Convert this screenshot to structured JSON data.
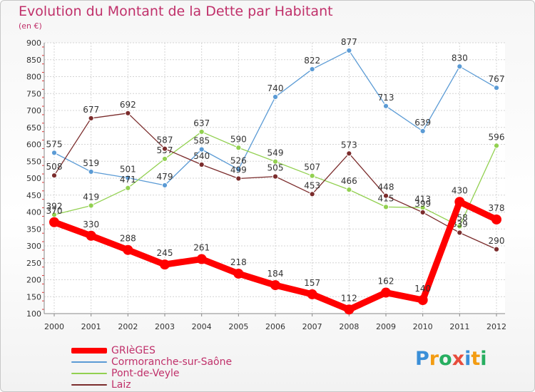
{
  "title": "Evolution du Montant de la Dette par Habitant",
  "subtitle": "(en €)",
  "logo": {
    "text": "Proxiti",
    "letters": [
      {
        "ch": "P",
        "color": "#3a8fd8"
      },
      {
        "ch": "r",
        "color": "#f39c12"
      },
      {
        "ch": "o",
        "color": "#27ae60"
      },
      {
        "ch": "x",
        "color": "#e74c3c"
      },
      {
        "ch": "i",
        "color": "#3a8fd8"
      },
      {
        "ch": "t",
        "color": "#f39c12"
      },
      {
        "ch": "i",
        "color": "#27ae60"
      }
    ]
  },
  "chart_data": {
    "type": "line",
    "x": [
      "2000",
      "2001",
      "2002",
      "2003",
      "2004",
      "2005",
      "2006",
      "2007",
      "2008",
      "2009",
      "2010",
      "2011",
      "2012"
    ],
    "ylim": [
      100,
      900
    ],
    "yticks": [
      "100",
      "150",
      "200",
      "250",
      "300",
      "350",
      "400",
      "450",
      "500",
      "550",
      "600",
      "650",
      "700",
      "750",
      "800",
      "850",
      "900"
    ],
    "grid": true,
    "legend_position": "bottom-left",
    "series": [
      {
        "name": "Cormoranche-sur-Saône",
        "color": "#5b9bd5",
        "values": [
          575,
          519,
          501,
          479,
          585,
          526,
          740,
          822,
          877,
          713,
          639,
          830,
          767
        ],
        "labels": [
          "575",
          "519",
          "501",
          "479",
          "585",
          "526",
          "740",
          "822",
          "877",
          "713",
          "639",
          "830",
          "767"
        ]
      },
      {
        "name": "Pont-de-Veyle",
        "color": "#92d050",
        "values": [
          392,
          419,
          471,
          557,
          637,
          590,
          549,
          507,
          466,
          415,
          413,
          358,
          596
        ],
        "labels": [
          "392",
          "419",
          "471",
          "557",
          "637",
          "590",
          "549",
          "507",
          "466",
          "415",
          "413",
          "358",
          "596"
        ]
      },
      {
        "name": "Laiz",
        "color": "#7b2c2c",
        "values": [
          508,
          677,
          692,
          587,
          540,
          499,
          505,
          453,
          573,
          448,
          399,
          339,
          290
        ],
        "labels": [
          "508",
          "677",
          "692",
          "587",
          "540",
          "499",
          "505",
          "453",
          "573",
          "448",
          "399",
          "339",
          "290"
        ]
      },
      {
        "name": "GRIèGES",
        "color": "#ff0000",
        "values": [
          370,
          330,
          288,
          245,
          261,
          218,
          184,
          157,
          112,
          162,
          140,
          430,
          378
        ],
        "labels": [
          "370",
          "330",
          "288",
          "245",
          "261",
          "218",
          "184",
          "157",
          "112",
          "162",
          "140",
          "430",
          "378"
        ]
      }
    ]
  },
  "legend": [
    {
      "label": "GRIèGES",
      "color": "#ff0000"
    },
    {
      "label": "Cormoranche-sur-Saône",
      "color": "#5b9bd5"
    },
    {
      "label": "Pont-de-Veyle",
      "color": "#92d050"
    },
    {
      "label": "Laiz",
      "color": "#7b2c2c"
    }
  ]
}
